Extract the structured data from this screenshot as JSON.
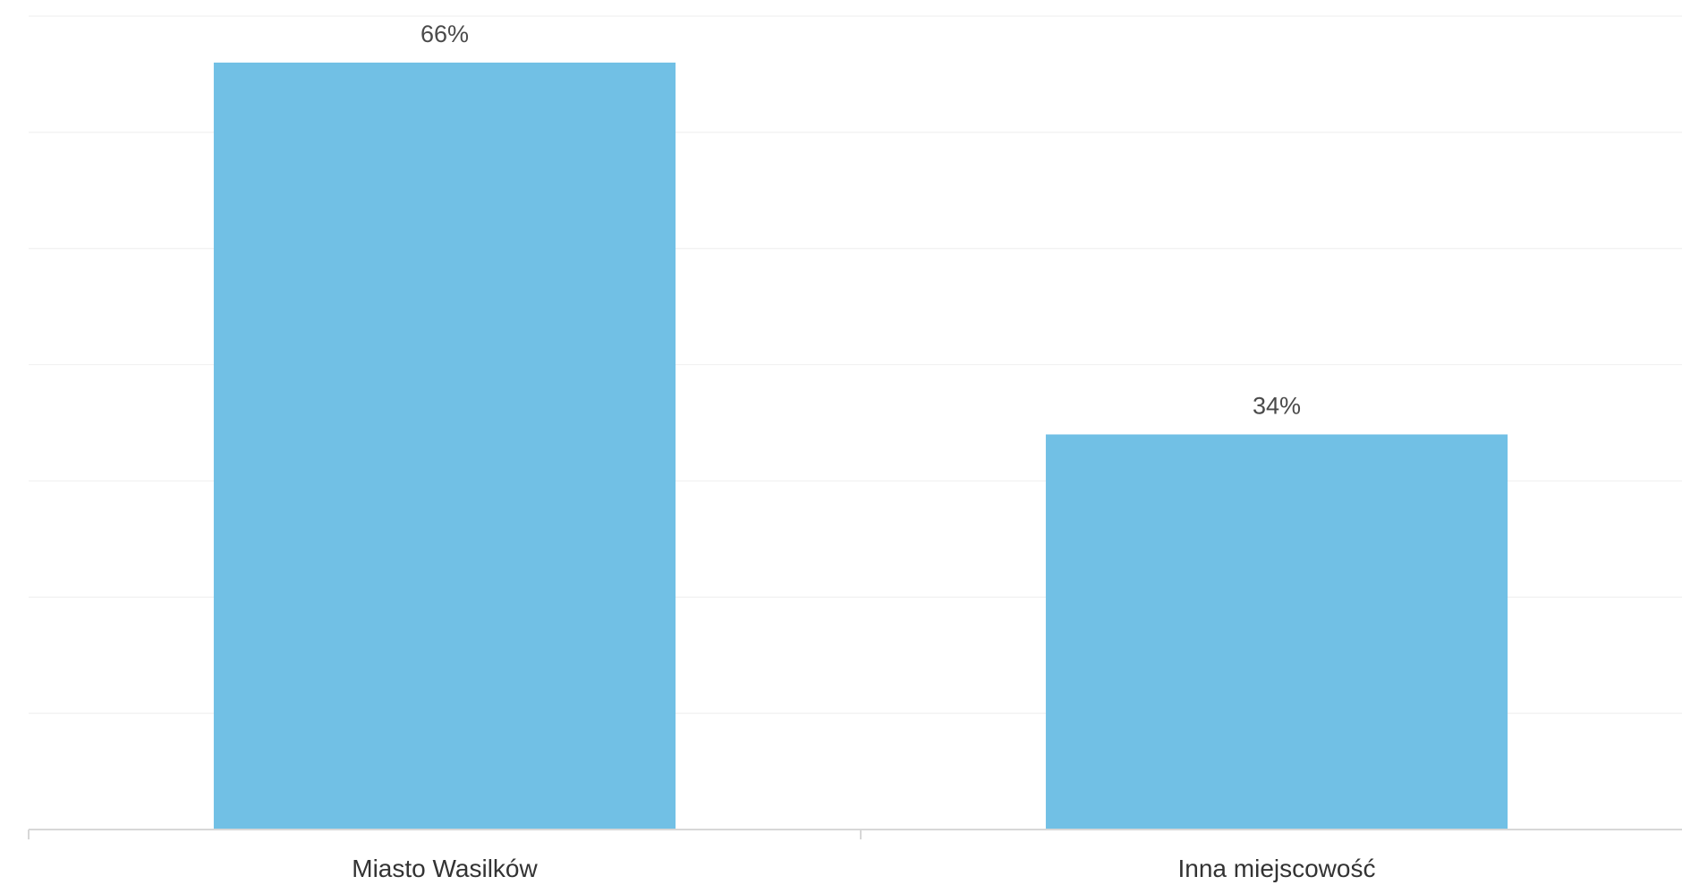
{
  "chart_data": {
    "type": "bar",
    "title": "",
    "xlabel": "",
    "ylabel": "",
    "categories": [
      "Miasto Wasilków",
      "Inna miejscowość"
    ],
    "values": [
      66,
      34
    ],
    "value_labels": [
      "66%",
      "34%"
    ],
    "unit": "%",
    "ylim": [
      0,
      70
    ],
    "grid": true,
    "legend": "none",
    "colors": {
      "bar": "#6ebfe4",
      "grid": "#f1f1f1",
      "axis": "#d7d7d7",
      "value_text": "#4a4a4a",
      "category_text": "#333333"
    }
  }
}
